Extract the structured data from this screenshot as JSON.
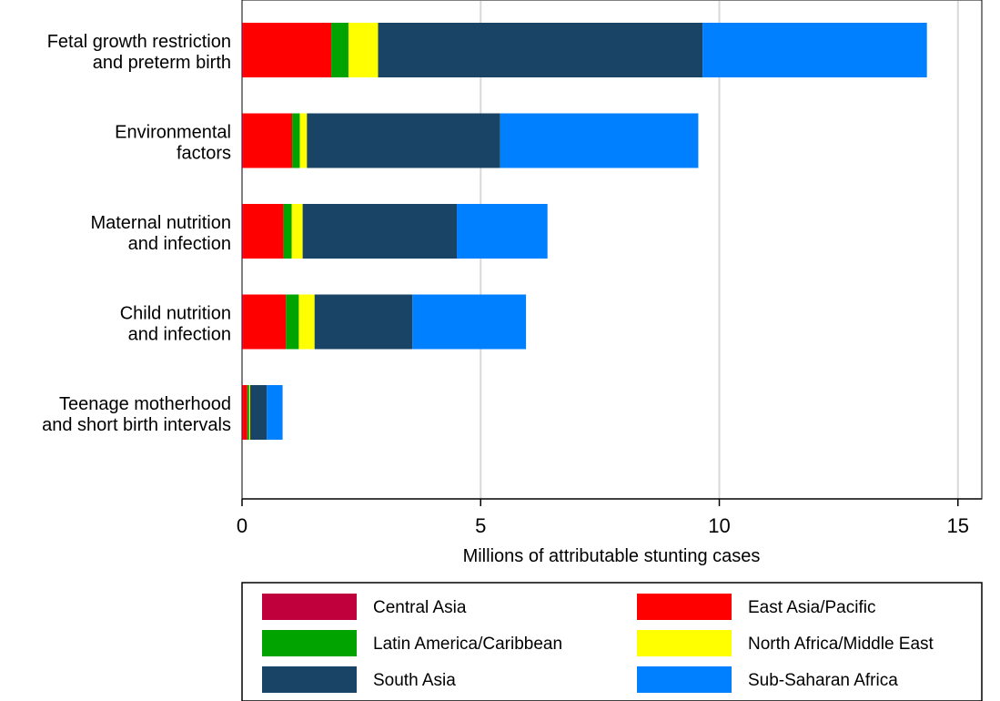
{
  "chart_data": {
    "type": "bar",
    "orientation": "horizontal",
    "stacked": true,
    "xlabel": "Millions of attributable stunting cases",
    "ylabel": "",
    "xlim": [
      0,
      15.5
    ],
    "xticks": [
      0,
      5,
      10,
      15
    ],
    "grid": "vertical",
    "legend_position": "bottom",
    "categories": [
      [
        "Fetal growth restriction",
        "and preterm birth"
      ],
      [
        "Environmental",
        "factors"
      ],
      [
        "Maternal nutrition",
        "and infection"
      ],
      [
        "Child nutrition",
        "and infection"
      ],
      [
        "Teenage motherhood",
        "and short birth intervals"
      ]
    ],
    "series": [
      {
        "name": "Central Asia",
        "color": "#c0003c",
        "values": [
          0.02,
          0.02,
          0.02,
          0.02,
          0.02
        ]
      },
      {
        "name": "East Asia/Pacific",
        "color": "#ff0000",
        "values": [
          1.85,
          1.03,
          0.85,
          0.9,
          0.09
        ]
      },
      {
        "name": "Latin America/Caribbean",
        "color": "#00a300",
        "values": [
          0.36,
          0.16,
          0.17,
          0.27,
          0.04
        ]
      },
      {
        "name": "North Africa/Middle East",
        "color": "#ffff00",
        "values": [
          0.62,
          0.15,
          0.23,
          0.33,
          0.02
        ]
      },
      {
        "name": "South Asia",
        "color": "#1a4466",
        "values": [
          6.8,
          4.05,
          3.23,
          2.05,
          0.35
        ]
      },
      {
        "name": "Sub-Saharan Africa",
        "color": "#0080ff",
        "values": [
          4.7,
          4.15,
          1.9,
          2.38,
          0.33
        ]
      }
    ]
  }
}
